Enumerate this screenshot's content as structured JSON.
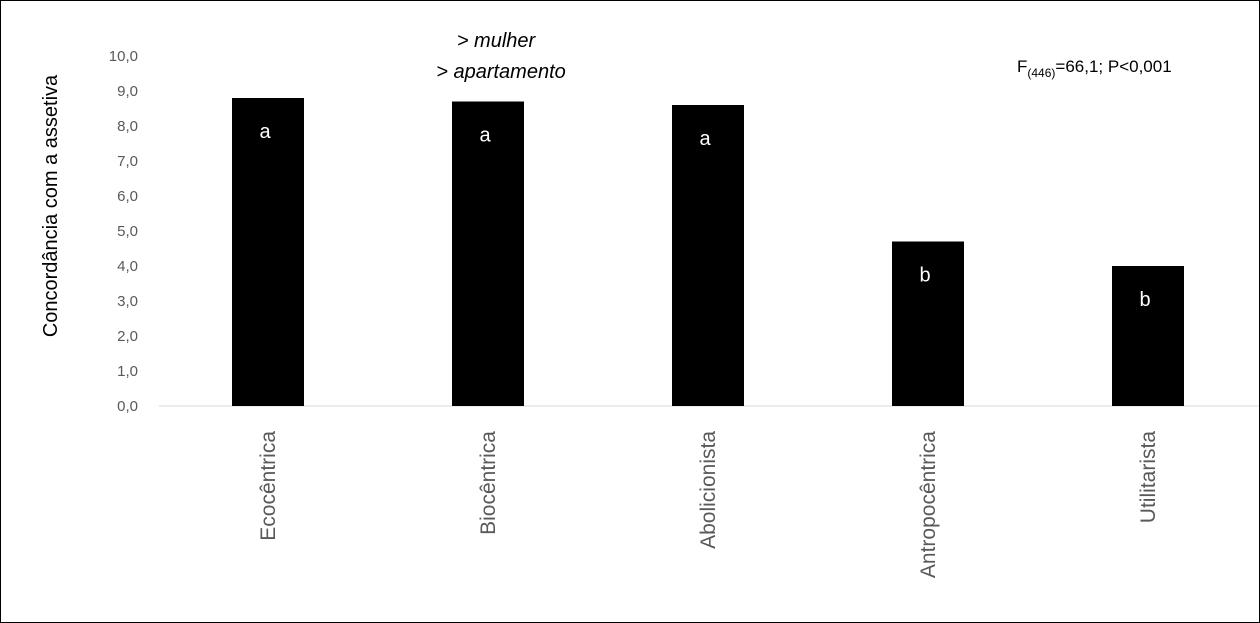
{
  "chart_data": {
    "type": "bar",
    "categories": [
      "Ecocêntrica",
      "Biocêntrica",
      "Abolicionista",
      "Antropocêntrica",
      "Utilitarista"
    ],
    "values": [
      8.8,
      8.7,
      8.6,
      4.7,
      4.0
    ],
    "bar_labels": [
      "a",
      "a",
      "a",
      "b",
      "b"
    ],
    "ylabel": "Concordância com a assetiva",
    "xlabel": "",
    "ylim": [
      0,
      10
    ],
    "yticks": [
      "0,0",
      "1,0",
      "2,0",
      "3,0",
      "4,0",
      "5,0",
      "6,0",
      "7,0",
      "8,0",
      "9,0",
      "10,0"
    ],
    "annotations": {
      "note_line1": "> mulher",
      "note_line2": "> apartamento",
      "stat_F": "F",
      "stat_sub": "(446)",
      "stat_rest": "=66,1; P<0,001"
    },
    "bar_color": "#000000",
    "grid": false
  }
}
